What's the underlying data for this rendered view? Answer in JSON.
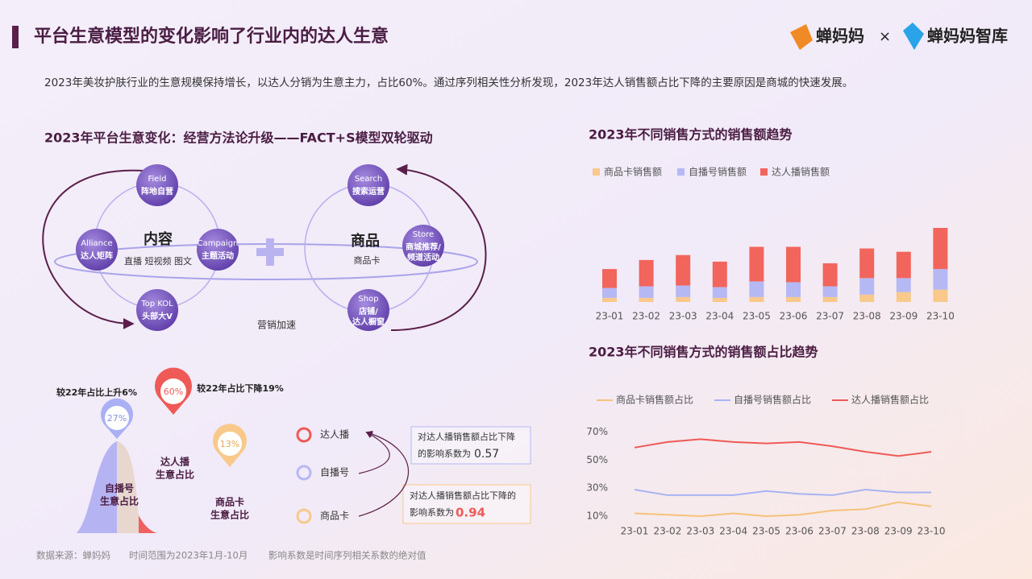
{
  "header": {
    "title": "平台生意模型的变化影响了行业内的达人生意",
    "subtitle": "2023年美妆护肤行业的生意规模保持增长，以达人分销为生意主力，占比60%。通过序列相关性分析发现，2023年达人销售额占比下降的主要原因是商城的快速发展。",
    "logo": "蝉妈妈",
    "times": "×",
    "logo2": "蝉妈妈智库"
  },
  "diagram": {
    "title": "2023年平台生意变化：经营方法论升级——FACT+S模型双轮驱动",
    "content": {
      "label": "内容",
      "sub": "直播 短视频 图文"
    },
    "product": {
      "label": "商品",
      "sub": "商品卡"
    },
    "nodes": [
      {
        "en": "Field",
        "zh": [
          "阵地自营"
        ]
      },
      {
        "en": "Alliance",
        "zh": [
          "达人矩阵"
        ]
      },
      {
        "en": "Campaign",
        "zh": [
          "主题活动"
        ]
      },
      {
        "en": "Top KOL",
        "zh": [
          "头部大V"
        ]
      },
      {
        "en": "Search",
        "zh": [
          "搜索运营"
        ]
      },
      {
        "en": "Store",
        "zh": [
          "商城推荐/",
          "频道活动"
        ]
      },
      {
        "en": "Shop",
        "zh": [
          "店铺/",
          "达人橱窗"
        ]
      }
    ],
    "accelerate": "营销加速"
  },
  "share": {
    "up_note": "较22年占比上升6%",
    "down_note": "较22年占比下降19%",
    "pins": [
      "27%",
      "60%",
      "13%"
    ],
    "labels": [
      [
        "自播号",
        "生意占比"
      ],
      [
        "达人播",
        "生意占比"
      ],
      [
        "商品卡",
        "生意占比"
      ]
    ],
    "legend": [
      "达人播",
      "自播号",
      "商品卡"
    ],
    "boxes": [
      {
        "lines": [
          "对达人播销售额占比下降",
          "的影响系数为"
        ],
        "value": "0.57"
      },
      {
        "lines": [
          "对达人播销售额占比下降的",
          "影响系数为"
        ],
        "value": "0.94"
      }
    ]
  },
  "footer": [
    "数据来源：蝉妈妈",
    "时间范围为2023年1月-10月",
    "影响系数是时间序列相关系数的绝对值"
  ],
  "chart_data": [
    {
      "type": "bar",
      "stacked": true,
      "title": "2023年不同销售方式的销售额趋势",
      "categories": [
        "23-01",
        "23-02",
        "23-03",
        "23-04",
        "23-05",
        "23-06",
        "23-07",
        "23-08",
        "23-09",
        "23-10"
      ],
      "series": [
        {
          "name": "商品卡销售额",
          "color": "#f8c98a",
          "values": [
            5,
            5,
            6,
            5,
            6,
            6,
            6,
            9,
            12,
            15
          ]
        },
        {
          "name": "自播号销售额",
          "color": "#b6b8f4",
          "values": [
            12,
            14,
            14,
            13,
            19,
            18,
            13,
            20,
            17,
            25
          ]
        },
        {
          "name": "达人播销售额",
          "color": "#f2655c",
          "values": [
            23,
            32,
            37,
            31,
            42,
            43,
            28,
            36,
            32,
            50
          ]
        }
      ]
    },
    {
      "type": "line",
      "title": "2023年不同销售方式的销售额占比趋势",
      "categories": [
        "23-01",
        "23-02",
        "23-03",
        "23-04",
        "23-05",
        "23-06",
        "23-07",
        "23-08",
        "23-09",
        "23-10"
      ],
      "ylim": [
        5,
        75
      ],
      "yticks": [
        {
          "value": 10,
          "label": "10%"
        },
        {
          "value": 30,
          "label": "30%"
        },
        {
          "value": 50,
          "label": "50%"
        },
        {
          "value": 70,
          "label": "70%"
        }
      ],
      "series": [
        {
          "name": "商品卡销售额占比",
          "color": "#f6c27a",
          "values": [
            12,
            11,
            10,
            12,
            10,
            11,
            14,
            15,
            20,
            17
          ]
        },
        {
          "name": "自播号销售额占比",
          "color": "#a9b3f2",
          "values": [
            29,
            25,
            25,
            25,
            28,
            26,
            25,
            29,
            27,
            27
          ]
        },
        {
          "name": "达人播销售额占比",
          "color": "#ef5a56",
          "values": [
            59,
            63,
            65,
            63,
            62,
            63,
            60,
            56,
            53,
            56
          ]
        }
      ]
    }
  ]
}
